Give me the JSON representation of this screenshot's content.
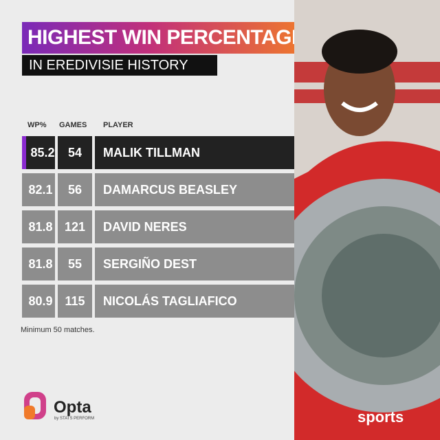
{
  "header": {
    "title": "HIGHEST WIN PERCENTAGE",
    "subtitle": "IN EREDIVISIE HISTORY"
  },
  "table": {
    "columns": [
      "WP%",
      "GAMES",
      "PLAYER"
    ],
    "rows": [
      [
        "85.2",
        "54",
        "MALIK TILLMAN"
      ],
      [
        "82.1",
        "56",
        "DAMARCUS BEASLEY"
      ],
      [
        "81.8",
        "121",
        "DAVID NERES"
      ],
      [
        "81.8",
        "55",
        "SERGIÑO DEST"
      ],
      [
        "80.9",
        "115",
        "NICOLÁS TAGLIAFICO"
      ]
    ]
  },
  "footnote": "Minimum 50 matches.",
  "logo": {
    "name": "Opta",
    "tagline": "by STATS PERFORM"
  },
  "watermark": "sports"
}
